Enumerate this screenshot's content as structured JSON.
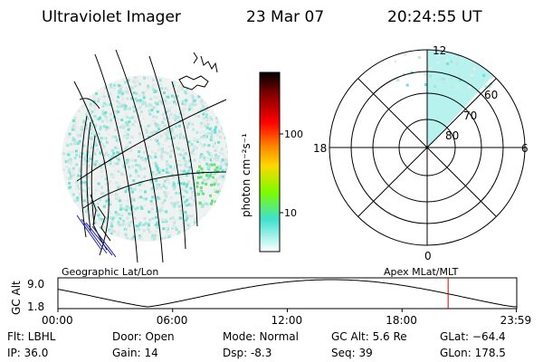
{
  "header": {
    "instrument": "Ultraviolet Imager",
    "date": "23 Mar 07",
    "time": "20:24:55 UT"
  },
  "colorbar": {
    "unit_label": "photon cm⁻²s⁻¹",
    "ticks": [
      "100",
      "10"
    ],
    "colors": [
      "#ffffff",
      "#40e0d0",
      "#7cfc00",
      "#ffd700",
      "#ff8c00",
      "#ff0000",
      "#8b0000",
      "#000000"
    ]
  },
  "left_panel": {
    "label": "Geographic Lat/Lon"
  },
  "right_panel": {
    "label": "Apex MLat/MLT",
    "mlt_labels": {
      "top": "12",
      "left": "18",
      "right": "6",
      "bottom": "0"
    },
    "lat_labels": [
      "60",
      "70",
      "80"
    ]
  },
  "altitude_plot": {
    "ylabel": "GC Alt",
    "yticks": [
      "9.0",
      "1.8"
    ],
    "xticks": [
      "00:00",
      "06:00",
      "12:00",
      "18:00",
      "23:59"
    ],
    "ylim": [
      1.8,
      9.0
    ],
    "current_time_hours": 20.41
  },
  "info": {
    "filter": "Flt: LBHL",
    "ip": "IP: 36.0",
    "door": "Door: Open",
    "gain": "Gain: 14",
    "mode": "Mode: Normal",
    "dsp": "Dsp:   -8.3",
    "gc_alt": "GC Alt: 5.6 Re",
    "seq": "Seq: 39",
    "glat": "GLat: −64.4",
    "glon": "GLon: 178.5"
  }
}
